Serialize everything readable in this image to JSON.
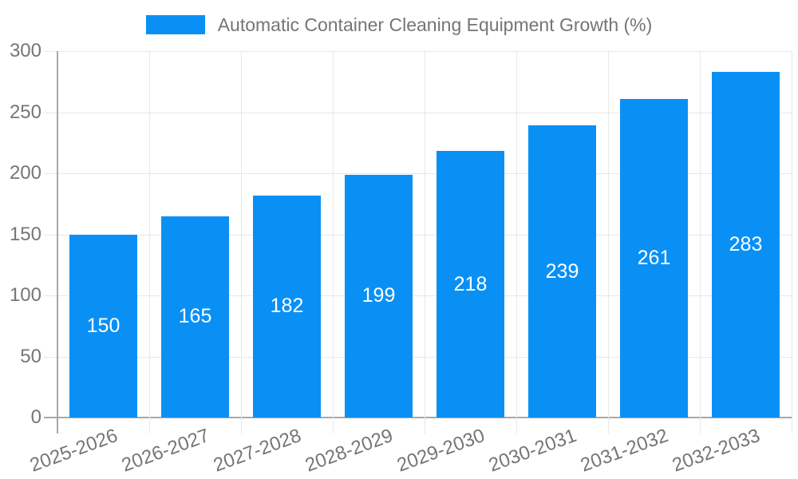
{
  "chart_data": {
    "type": "bar",
    "title": "Automatic Container Cleaning Equipment Growth (%)",
    "legend_position": "top",
    "categories": [
      "2025-2026",
      "2026-2027",
      "2027-2028",
      "2028-2029",
      "2029-2030",
      "2030-2031",
      "2031-2032",
      "2032-2033"
    ],
    "series": [
      {
        "name": "Automatic Container Cleaning Equipment Growth (%)",
        "values": [
          150,
          165,
          182,
          199,
          218,
          239,
          261,
          283
        ]
      }
    ],
    "xlabel": "",
    "ylabel": "",
    "ylim": [
      0,
      300
    ],
    "yticks": [
      0,
      50,
      100,
      150,
      200,
      250,
      300
    ],
    "x_tick_rotation_deg": -20,
    "grid": true,
    "value_label_position": "center",
    "colors": {
      "bar": "#0a90f5",
      "grid": "#e8e8e8",
      "axis": "#a8a8a8",
      "tick_text": "#757575",
      "value_label_text": "#ffffff",
      "background": "#ffffff"
    }
  }
}
